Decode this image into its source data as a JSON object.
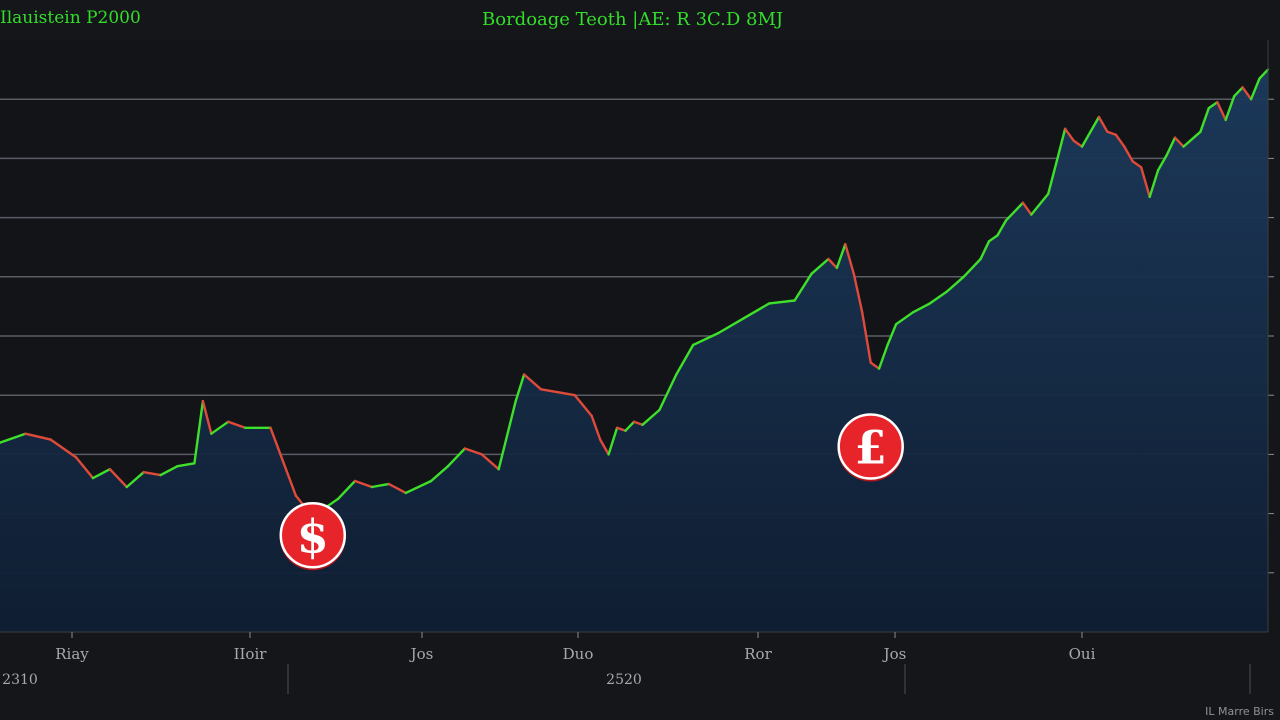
{
  "header": {
    "corner_title": "Ilauistein P2000",
    "title": "Bordoage Teoth |AE: R 3C.D 8MJ"
  },
  "footer": {
    "right_note": "IL Marre Birs"
  },
  "colors": {
    "background": "#141619",
    "line_up": "#3fe02a",
    "line_down": "#e04a3a",
    "area_fill": "#16314f",
    "marker": "#e8242b"
  },
  "markers": [
    {
      "name": "dollar-marker",
      "glyph": "$",
      "x": 37,
      "y": 4.6
    },
    {
      "name": "pound-marker",
      "glyph": "£",
      "x": 103,
      "y": 6.1
    },
    {
      "name": "big-dollar",
      "glyph": "$",
      "x": 153,
      "y": 11.6
    }
  ],
  "chart_data": {
    "type": "area",
    "title": "Bordoage Teoth |AE: R 3C.D 8MJ",
    "x_tick_labels": [
      "Riay",
      "IIoir",
      "Jos",
      "Duo",
      "Ror",
      "Jos",
      "Oui"
    ],
    "year_labels": [
      "2310",
      "2520"
    ],
    "ylim": [
      3,
      13
    ],
    "y_gridlines": [
      4,
      5,
      6,
      7,
      8,
      9,
      10,
      11,
      12
    ],
    "xlim": [
      0,
      150
    ],
    "grid": true,
    "legend": "none",
    "series": [
      {
        "values": [
          [
            0,
            6.2
          ],
          [
            3,
            6.35
          ],
          [
            6,
            6.25
          ],
          [
            9,
            5.95
          ],
          [
            11,
            5.6
          ],
          [
            13,
            5.75
          ],
          [
            15,
            5.45
          ],
          [
            17,
            5.7
          ],
          [
            19,
            5.65
          ],
          [
            21,
            5.8
          ],
          [
            23,
            5.85
          ],
          [
            24,
            6.9
          ],
          [
            25,
            6.35
          ],
          [
            27,
            6.55
          ],
          [
            29,
            6.45
          ],
          [
            32,
            6.45
          ],
          [
            35,
            5.3
          ],
          [
            37,
            4.95
          ],
          [
            38,
            5.05
          ],
          [
            40,
            5.25
          ],
          [
            42,
            5.55
          ],
          [
            44,
            5.45
          ],
          [
            46,
            5.5
          ],
          [
            48,
            5.35
          ],
          [
            51,
            5.55
          ],
          [
            53,
            5.8
          ],
          [
            55,
            6.1
          ],
          [
            57,
            6.0
          ],
          [
            59,
            5.75
          ],
          [
            61,
            6.9
          ],
          [
            62,
            7.35
          ],
          [
            64,
            7.1
          ],
          [
            66,
            7.05
          ],
          [
            68,
            7.0
          ],
          [
            70,
            6.65
          ],
          [
            71,
            6.25
          ],
          [
            72,
            6.0
          ],
          [
            73,
            6.45
          ],
          [
            74,
            6.4
          ],
          [
            75,
            6.55
          ],
          [
            76,
            6.5
          ],
          [
            78,
            6.75
          ],
          [
            80,
            7.35
          ],
          [
            82,
            7.85
          ],
          [
            85,
            8.05
          ],
          [
            88,
            8.3
          ],
          [
            91,
            8.55
          ],
          [
            94,
            8.6
          ],
          [
            96,
            9.05
          ],
          [
            98,
            9.3
          ],
          [
            99,
            9.15
          ],
          [
            100,
            9.55
          ],
          [
            101,
            9.05
          ],
          [
            102,
            8.4
          ],
          [
            103,
            7.55
          ],
          [
            104,
            7.45
          ],
          [
            105,
            7.85
          ],
          [
            106,
            8.2
          ],
          [
            108,
            8.4
          ],
          [
            110,
            8.55
          ],
          [
            112,
            8.75
          ],
          [
            114,
            9.0
          ],
          [
            116,
            9.3
          ],
          [
            117,
            9.6
          ],
          [
            118,
            9.7
          ],
          [
            119,
            9.95
          ],
          [
            121,
            10.25
          ],
          [
            122,
            10.05
          ],
          [
            124,
            10.4
          ],
          [
            125,
            10.95
          ],
          [
            126,
            11.5
          ],
          [
            127,
            11.3
          ],
          [
            128,
            11.2
          ],
          [
            130,
            11.7
          ],
          [
            131,
            11.45
          ],
          [
            132,
            11.4
          ],
          [
            133,
            11.2
          ],
          [
            134,
            10.95
          ],
          [
            135,
            10.85
          ],
          [
            136,
            10.35
          ],
          [
            137,
            10.8
          ],
          [
            138,
            11.05
          ],
          [
            139,
            11.35
          ],
          [
            140,
            11.2
          ],
          [
            142,
            11.45
          ],
          [
            143,
            11.85
          ],
          [
            144,
            11.95
          ],
          [
            145,
            11.65
          ],
          [
            146,
            12.05
          ],
          [
            147,
            12.2
          ],
          [
            148,
            12.0
          ],
          [
            149,
            12.35
          ],
          [
            150,
            12.5
          ]
        ]
      }
    ]
  }
}
